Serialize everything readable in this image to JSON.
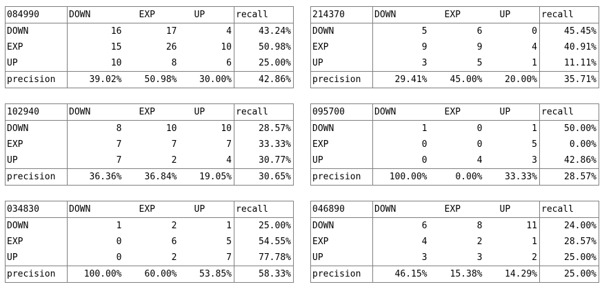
{
  "matrices": [
    {
      "id": "084990",
      "cols": [
        "DOWN",
        "EXP",
        "UP"
      ],
      "recall_label": "recall",
      "rows": [
        {
          "label": "DOWN",
          "values": [
            "16",
            "17",
            "4"
          ],
          "recall": "43.24%"
        },
        {
          "label": "EXP",
          "values": [
            "15",
            "26",
            "10"
          ],
          "recall": "50.98%"
        },
        {
          "label": "UP",
          "values": [
            "10",
            "8",
            "6"
          ],
          "recall": "25.00%"
        }
      ],
      "precision_label": "precision",
      "precision": [
        "39.02%",
        "50.98%",
        "30.00%"
      ],
      "overall": "42.86%"
    },
    {
      "id": "214370",
      "cols": [
        "DOWN",
        "EXP",
        "UP"
      ],
      "recall_label": "recall",
      "rows": [
        {
          "label": "DOWN",
          "values": [
            "5",
            "6",
            "0"
          ],
          "recall": "45.45%"
        },
        {
          "label": "EXP",
          "values": [
            "9",
            "9",
            "4"
          ],
          "recall": "40.91%"
        },
        {
          "label": "UP",
          "values": [
            "3",
            "5",
            "1"
          ],
          "recall": "11.11%"
        }
      ],
      "precision_label": "precision",
      "precision": [
        "29.41%",
        "45.00%",
        "20.00%"
      ],
      "overall": "35.71%"
    },
    {
      "id": "102940",
      "cols": [
        "DOWN",
        "EXP",
        "UP"
      ],
      "recall_label": "recall",
      "rows": [
        {
          "label": "DOWN",
          "values": [
            "8",
            "10",
            "10"
          ],
          "recall": "28.57%"
        },
        {
          "label": "EXP",
          "values": [
            "7",
            "7",
            "7"
          ],
          "recall": "33.33%"
        },
        {
          "label": "UP",
          "values": [
            "7",
            "2",
            "4"
          ],
          "recall": "30.77%"
        }
      ],
      "precision_label": "precision",
      "precision": [
        "36.36%",
        "36.84%",
        "19.05%"
      ],
      "overall": "30.65%"
    },
    {
      "id": "095700",
      "cols": [
        "DOWN",
        "EXP",
        "UP"
      ],
      "recall_label": "recall",
      "rows": [
        {
          "label": "DOWN",
          "values": [
            "1",
            "0",
            "1"
          ],
          "recall": "50.00%"
        },
        {
          "label": "EXP",
          "values": [
            "0",
            "0",
            "5"
          ],
          "recall": "0.00%"
        },
        {
          "label": "UP",
          "values": [
            "0",
            "4",
            "3"
          ],
          "recall": "42.86%"
        }
      ],
      "precision_label": "precision",
      "precision": [
        "100.00%",
        "0.00%",
        "33.33%"
      ],
      "overall": "28.57%"
    },
    {
      "id": "034830",
      "cols": [
        "DOWN",
        "EXP",
        "UP"
      ],
      "recall_label": "recall",
      "rows": [
        {
          "label": "DOWN",
          "values": [
            "1",
            "2",
            "1"
          ],
          "recall": "25.00%"
        },
        {
          "label": "EXP",
          "values": [
            "0",
            "6",
            "5"
          ],
          "recall": "54.55%"
        },
        {
          "label": "UP",
          "values": [
            "0",
            "2",
            "7"
          ],
          "recall": "77.78%"
        }
      ],
      "precision_label": "precision",
      "precision": [
        "100.00%",
        "60.00%",
        "53.85%"
      ],
      "overall": "58.33%"
    },
    {
      "id": "046890",
      "cols": [
        "DOWN",
        "EXP",
        "UP"
      ],
      "recall_label": "recall",
      "rows": [
        {
          "label": "DOWN",
          "values": [
            "6",
            "8",
            "11"
          ],
          "recall": "24.00%"
        },
        {
          "label": "EXP",
          "values": [
            "4",
            "2",
            "1"
          ],
          "recall": "28.57%"
        },
        {
          "label": "UP",
          "values": [
            "3",
            "3",
            "2"
          ],
          "recall": "25.00%"
        }
      ],
      "precision_label": "precision",
      "precision": [
        "46.15%",
        "15.38%",
        "14.29%"
      ],
      "overall": "25.00%"
    }
  ]
}
